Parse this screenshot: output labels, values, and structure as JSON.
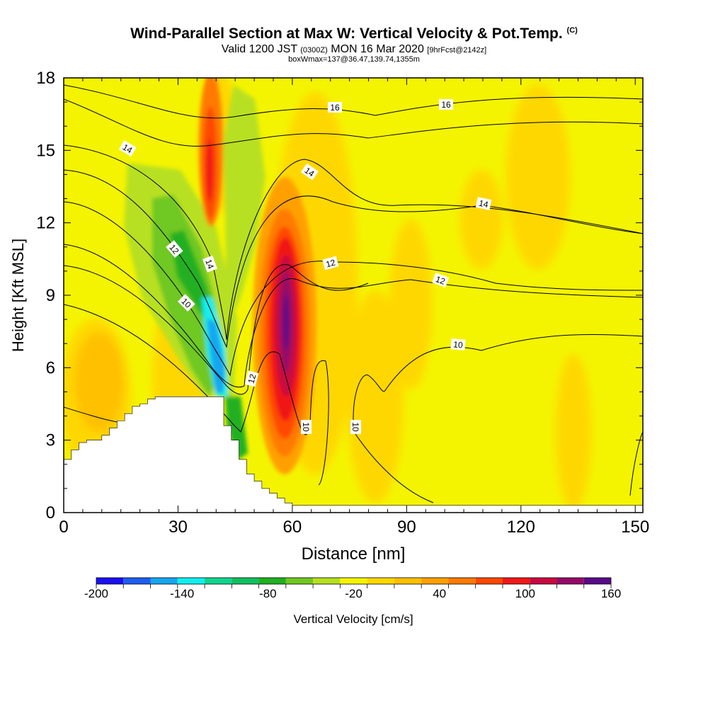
{
  "title": {
    "main": "Wind-Parallel Section at Max W: Vertical Velocity & Pot.Temp.",
    "copyright": "(C)",
    "valid_prefix": "Valid 1200 JST",
    "valid_utc": "(0300Z)",
    "valid_date": "MON 16 Mar 2020",
    "forecast": "[9hrFcst@2142z]",
    "box_info": "boxWmax=137@36.47,139.74,1355m"
  },
  "chart_data": {
    "type": "heatmap",
    "xlabel": "Distance [nm]",
    "ylabel": "Height [Kft MSL]",
    "xlim": [
      0,
      152
    ],
    "ylim": [
      0,
      18
    ],
    "x_ticks": [
      "0",
      "30",
      "60",
      "90",
      "120",
      "150"
    ],
    "x_tick_values": [
      0,
      30,
      60,
      90,
      120,
      150
    ],
    "y_ticks": [
      "0",
      "3",
      "6",
      "9",
      "12",
      "15",
      "18"
    ],
    "y_tick_values": [
      0,
      3,
      6,
      9,
      12,
      15,
      18
    ],
    "colorbar": {
      "label": "Vertical Velocity [cm/s]",
      "tick_labels": [
        "-200",
        "-140",
        "-80",
        "-20",
        "40",
        "100",
        "160"
      ],
      "tick_values": [
        -200,
        -140,
        -80,
        -20,
        40,
        100,
        160
      ],
      "levels": [
        -200,
        -180,
        -160,
        -140,
        -120,
        -100,
        -80,
        -60,
        -40,
        -20,
        0,
        20,
        40,
        60,
        80,
        100,
        120,
        140,
        160
      ],
      "colors": [
        "#1a10f0",
        "#1e5ef0",
        "#17a6f0",
        "#12eeee",
        "#10d490",
        "#10c060",
        "#20b020",
        "#70c820",
        "#b8e020",
        "#f4f400",
        "#ffd700",
        "#ffc000",
        "#ffa000",
        "#ff7a00",
        "#ff4800",
        "#f01818",
        "#c80a40",
        "#960a68",
        "#5a0a88"
      ]
    },
    "terrain_profile": {
      "x": [
        0,
        2,
        4,
        6,
        8,
        10,
        12,
        14,
        16,
        18,
        20,
        22,
        24,
        26,
        28,
        30,
        32,
        34,
        36,
        38,
        40,
        42,
        44,
        46,
        48,
        50,
        52,
        54,
        56,
        58,
        60,
        62,
        152
      ],
      "height": [
        2.2,
        2.6,
        2.9,
        3.0,
        3.0,
        3.2,
        3.5,
        3.8,
        4.1,
        4.4,
        4.5,
        4.7,
        4.8,
        4.8,
        4.8,
        4.8,
        4.8,
        4.8,
        4.8,
        4.8,
        4.8,
        3.6,
        3.0,
        2.2,
        1.6,
        1.3,
        1.0,
        0.8,
        0.6,
        0.4,
        0.3,
        0.3,
        0.3
      ]
    },
    "contour_labels": [
      "16",
      "16",
      "14",
      "14",
      "14",
      "14",
      "12",
      "12",
      "12",
      "12",
      "10",
      "10",
      "10",
      "10"
    ],
    "features": [
      {
        "name": "updraft-core",
        "x": 58,
        "height": 8,
        "value": 160
      },
      {
        "name": "updraft-upper",
        "x": 39,
        "height": 14,
        "value": 100
      },
      {
        "name": "downdraft-core",
        "x": 40,
        "height": 6,
        "value": -160
      },
      {
        "name": "downdraft-band",
        "x": 30,
        "height": 10,
        "value": -80
      }
    ]
  }
}
